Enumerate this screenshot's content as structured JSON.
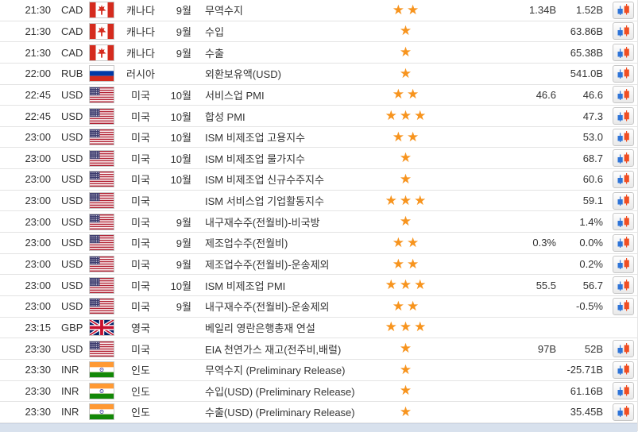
{
  "colors": {
    "star": "#F7941E",
    "candle_up_blue": "#2E74D8",
    "candle_down_red": "#F04E23",
    "row_border": "#E4E4E4",
    "footer_bg": "#D8E1ED",
    "text": "#333333"
  },
  "icons": {
    "importance": "star-icon",
    "chart_button": "candlestick-chart-icon"
  },
  "table": {
    "rows": [
      {
        "time": "21:30",
        "currency": "CAD",
        "flag": "flag-canada",
        "country": "캐나다",
        "month": "9월",
        "event": "무역수지",
        "stars": 2,
        "value1": "1.34B",
        "value2": "1.52B",
        "chart": true
      },
      {
        "time": "21:30",
        "currency": "CAD",
        "flag": "flag-canada",
        "country": "캐나다",
        "month": "9월",
        "event": "수입",
        "stars": 1,
        "value1": "",
        "value2": "63.86B",
        "chart": true
      },
      {
        "time": "21:30",
        "currency": "CAD",
        "flag": "flag-canada",
        "country": "캐나다",
        "month": "9월",
        "event": "수출",
        "stars": 1,
        "value1": "",
        "value2": "65.38B",
        "chart": true
      },
      {
        "time": "22:00",
        "currency": "RUB",
        "flag": "flag-russia",
        "country": "러시아",
        "month": "",
        "event": "외환보유액(USD)",
        "stars": 1,
        "value1": "",
        "value2": "541.0B",
        "chart": true
      },
      {
        "time": "22:45",
        "currency": "USD",
        "flag": "flag-usa",
        "country": "미국",
        "month": "10월",
        "event": "서비스업 PMI",
        "stars": 2,
        "value1": "46.6",
        "value2": "46.6",
        "chart": true
      },
      {
        "time": "22:45",
        "currency": "USD",
        "flag": "flag-usa",
        "country": "미국",
        "month": "10월",
        "event": "합성 PMI",
        "stars": 3,
        "value1": "",
        "value2": "47.3",
        "chart": true
      },
      {
        "time": "23:00",
        "currency": "USD",
        "flag": "flag-usa",
        "country": "미국",
        "month": "10월",
        "event": "ISM 비제조업 고용지수",
        "stars": 2,
        "value1": "",
        "value2": "53.0",
        "chart": true
      },
      {
        "time": "23:00",
        "currency": "USD",
        "flag": "flag-usa",
        "country": "미국",
        "month": "10월",
        "event": "ISM 비제조업 물가지수",
        "stars": 1,
        "value1": "",
        "value2": "68.7",
        "chart": true
      },
      {
        "time": "23:00",
        "currency": "USD",
        "flag": "flag-usa",
        "country": "미국",
        "month": "10월",
        "event": "ISM 비제조업 신규수주지수",
        "stars": 1,
        "value1": "",
        "value2": "60.6",
        "chart": true
      },
      {
        "time": "23:00",
        "currency": "USD",
        "flag": "flag-usa",
        "country": "미국",
        "month": "",
        "event": "ISM 서비스업 기업활동지수",
        "stars": 3,
        "value1": "",
        "value2": "59.1",
        "chart": true
      },
      {
        "time": "23:00",
        "currency": "USD",
        "flag": "flag-usa",
        "country": "미국",
        "month": "9월",
        "event": "내구재수주(전월비)-비국방",
        "stars": 1,
        "value1": "",
        "value2": "1.4%",
        "chart": true
      },
      {
        "time": "23:00",
        "currency": "USD",
        "flag": "flag-usa",
        "country": "미국",
        "month": "9월",
        "event": "제조업수주(전월비)",
        "stars": 2,
        "value1": "0.3%",
        "value2": "0.0%",
        "chart": true
      },
      {
        "time": "23:00",
        "currency": "USD",
        "flag": "flag-usa",
        "country": "미국",
        "month": "9월",
        "event": "제조업수주(전월비)-운송제외",
        "stars": 2,
        "value1": "",
        "value2": "0.2%",
        "chart": true
      },
      {
        "time": "23:00",
        "currency": "USD",
        "flag": "flag-usa",
        "country": "미국",
        "month": "10월",
        "event": "ISM 비제조업 PMI",
        "stars": 3,
        "value1": "55.5",
        "value2": "56.7",
        "chart": true
      },
      {
        "time": "23:00",
        "currency": "USD",
        "flag": "flag-usa",
        "country": "미국",
        "month": "9월",
        "event": "내구재수주(전월비)-운송제외",
        "stars": 2,
        "value1": "",
        "value2": "-0.5%",
        "chart": true
      },
      {
        "time": "23:15",
        "currency": "GBP",
        "flag": "flag-uk",
        "country": "영국",
        "month": "",
        "event": "베일리 영란은행총재 연설",
        "stars": 3,
        "value1": "",
        "value2": "",
        "chart": false
      },
      {
        "time": "23:30",
        "currency": "USD",
        "flag": "flag-usa",
        "country": "미국",
        "month": "",
        "event": "EIA 천연가스 재고(전주비,배럴)",
        "stars": 1,
        "value1": "97B",
        "value2": "52B",
        "chart": true
      },
      {
        "time": "23:30",
        "currency": "INR",
        "flag": "flag-india",
        "country": "인도",
        "month": "",
        "event": "무역수지 (Preliminary Release)",
        "stars": 1,
        "value1": "",
        "value2": "-25.71B",
        "chart": true
      },
      {
        "time": "23:30",
        "currency": "INR",
        "flag": "flag-india",
        "country": "인도",
        "month": "",
        "event": "수입(USD) (Preliminary Release)",
        "stars": 1,
        "value1": "",
        "value2": "61.16B",
        "chart": true
      },
      {
        "time": "23:30",
        "currency": "INR",
        "flag": "flag-india",
        "country": "인도",
        "month": "",
        "event": "수출(USD) (Preliminary Release)",
        "stars": 1,
        "value1": "",
        "value2": "35.45B",
        "chart": true
      }
    ]
  }
}
